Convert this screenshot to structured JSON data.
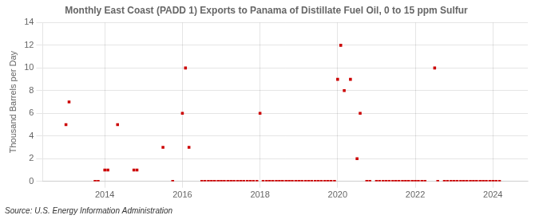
{
  "chart_data": {
    "type": "scatter",
    "title": "Monthly East Coast (PADD 1) Exports to Panama of Distillate Fuel Oil, 0 to 15 ppm Sulfur",
    "ylabel": "Thousand Barrels per Day",
    "annotations": [
      "Source: U.S. Energy Information Administration"
    ],
    "color": "#cc0000",
    "marker": "square",
    "grid": true,
    "xlim": [
      2012.4,
      2024.9
    ],
    "xticks": [
      2014,
      2016,
      2018,
      2020,
      2022,
      2024
    ],
    "ylim": [
      0,
      14
    ],
    "yticks": [
      0,
      2,
      4,
      6,
      8,
      10,
      12,
      14
    ],
    "x": [
      2013.0,
      2013.08,
      2013.75,
      2013.83,
      2014.0,
      2014.08,
      2014.33,
      2014.75,
      2014.83,
      2015.5,
      2015.75,
      2016.0,
      2016.08,
      2016.17,
      2016.5,
      2016.58,
      2016.67,
      2016.75,
      2016.83,
      2016.92,
      2017.0,
      2017.08,
      2017.17,
      2017.25,
      2017.33,
      2017.42,
      2017.5,
      2017.58,
      2017.67,
      2017.75,
      2017.83,
      2017.92,
      2018.0,
      2018.08,
      2018.17,
      2018.25,
      2018.33,
      2018.42,
      2018.5,
      2018.58,
      2018.67,
      2018.75,
      2018.83,
      2018.92,
      2019.0,
      2019.08,
      2019.17,
      2019.25,
      2019.33,
      2019.42,
      2019.5,
      2019.58,
      2019.67,
      2019.75,
      2019.83,
      2019.92,
      2020.0,
      2020.08,
      2020.17,
      2020.33,
      2020.5,
      2020.58,
      2020.75,
      2020.83,
      2021.0,
      2021.08,
      2021.17,
      2021.25,
      2021.33,
      2021.42,
      2021.5,
      2021.58,
      2021.67,
      2021.75,
      2021.83,
      2021.92,
      2022.0,
      2022.08,
      2022.17,
      2022.25,
      2022.5,
      2022.58,
      2022.75,
      2022.83,
      2022.92,
      2023.0,
      2023.08,
      2023.17,
      2023.25,
      2023.33,
      2023.42,
      2023.5,
      2023.58,
      2023.67,
      2023.75,
      2023.83,
      2023.92,
      2024.0,
      2024.08,
      2024.17
    ],
    "values": [
      5,
      7,
      0,
      0,
      1,
      1,
      5,
      1,
      1,
      3,
      0,
      6,
      10,
      3,
      0,
      0,
      0,
      0,
      0,
      0,
      0,
      0,
      0,
      0,
      0,
      0,
      0,
      0,
      0,
      0,
      0,
      0,
      6,
      0,
      0,
      0,
      0,
      0,
      0,
      0,
      0,
      0,
      0,
      0,
      0,
      0,
      0,
      0,
      0,
      0,
      0,
      0,
      0,
      0,
      0,
      0,
      9,
      12,
      8,
      9,
      2,
      6,
      0,
      0,
      0,
      0,
      0,
      0,
      0,
      0,
      0,
      0,
      0,
      0,
      0,
      0,
      0,
      0,
      0,
      0,
      10,
      0,
      0,
      0,
      0,
      0,
      0,
      0,
      0,
      0,
      0,
      0,
      0,
      0,
      0,
      0,
      0,
      0,
      0,
      0
    ]
  }
}
